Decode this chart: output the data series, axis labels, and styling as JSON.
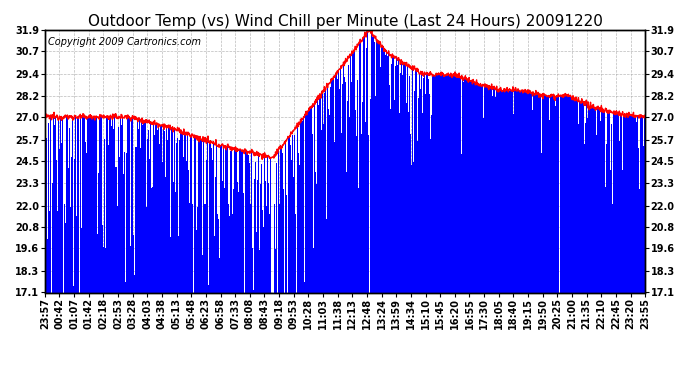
{
  "title": "Outdoor Temp (vs) Wind Chill per Minute (Last 24 Hours) 20091220",
  "copyright": "Copyright 2009 Cartronics.com",
  "yticks": [
    17.1,
    18.3,
    19.6,
    20.8,
    22.0,
    23.3,
    24.5,
    25.7,
    27.0,
    28.2,
    29.4,
    30.7,
    31.9
  ],
  "ymin": 17.1,
  "ymax": 31.9,
  "background_color": "#ffffff",
  "plot_bg_color": "#ffffff",
  "grid_color": "#aaaaaa",
  "bar_color": "#0000ff",
  "line_color": "#ff0000",
  "title_fontsize": 11,
  "copyright_fontsize": 7,
  "tick_fontsize": 7,
  "xtick_labels": [
    "23:57",
    "00:42",
    "01:07",
    "01:42",
    "02:18",
    "02:53",
    "03:28",
    "04:03",
    "04:38",
    "05:13",
    "05:48",
    "06:23",
    "06:58",
    "07:33",
    "08:08",
    "08:43",
    "09:18",
    "09:53",
    "10:28",
    "11:03",
    "11:38",
    "12:13",
    "12:48",
    "13:24",
    "13:59",
    "14:34",
    "15:10",
    "15:45",
    "16:20",
    "16:55",
    "17:30",
    "18:05",
    "18:40",
    "19:15",
    "19:50",
    "20:25",
    "21:00",
    "21:35",
    "22:10",
    "22:45",
    "23:20",
    "23:55"
  ]
}
